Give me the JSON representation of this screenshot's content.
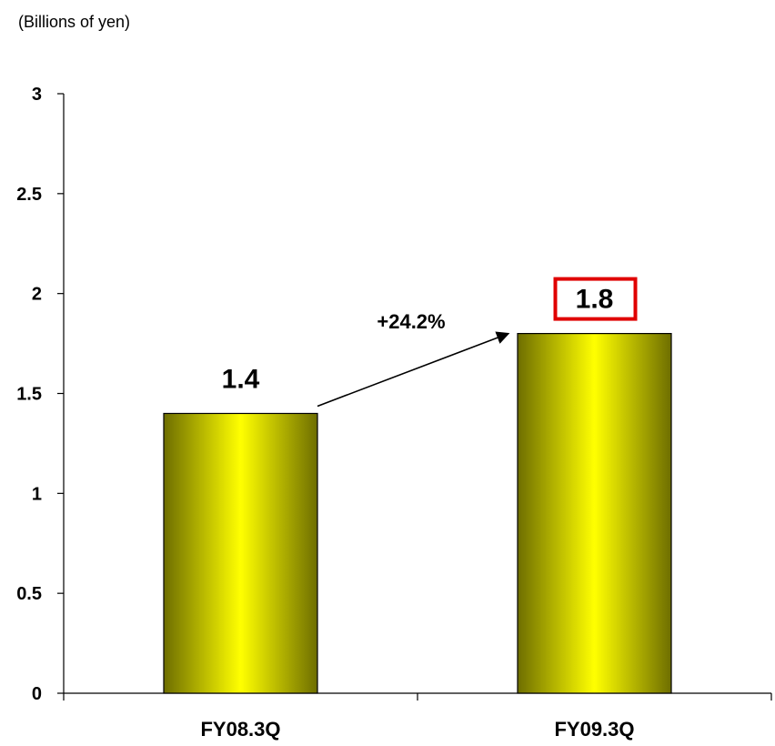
{
  "chart_data": {
    "type": "bar",
    "unit_label": "(Billions of yen)",
    "categories": [
      "FY08.3Q",
      "FY09.3Q"
    ],
    "values": [
      1.4,
      1.8
    ],
    "value_labels": [
      "1.4",
      "1.8"
    ],
    "highlighted_index": 1,
    "ylim": [
      0,
      3
    ],
    "yticks": [
      0,
      0.5,
      1,
      1.5,
      2,
      2.5,
      3
    ],
    "ytick_labels": [
      "0",
      "0.5",
      "1",
      "1.5",
      "2",
      "2.5",
      "3"
    ],
    "annotation": "+24.2%",
    "grid": false,
    "colors": {
      "bar_edge": "#6e6e00",
      "bar_center": "#ffff00",
      "bar_outline": "#000000",
      "highlight_box": "#e00000"
    }
  }
}
